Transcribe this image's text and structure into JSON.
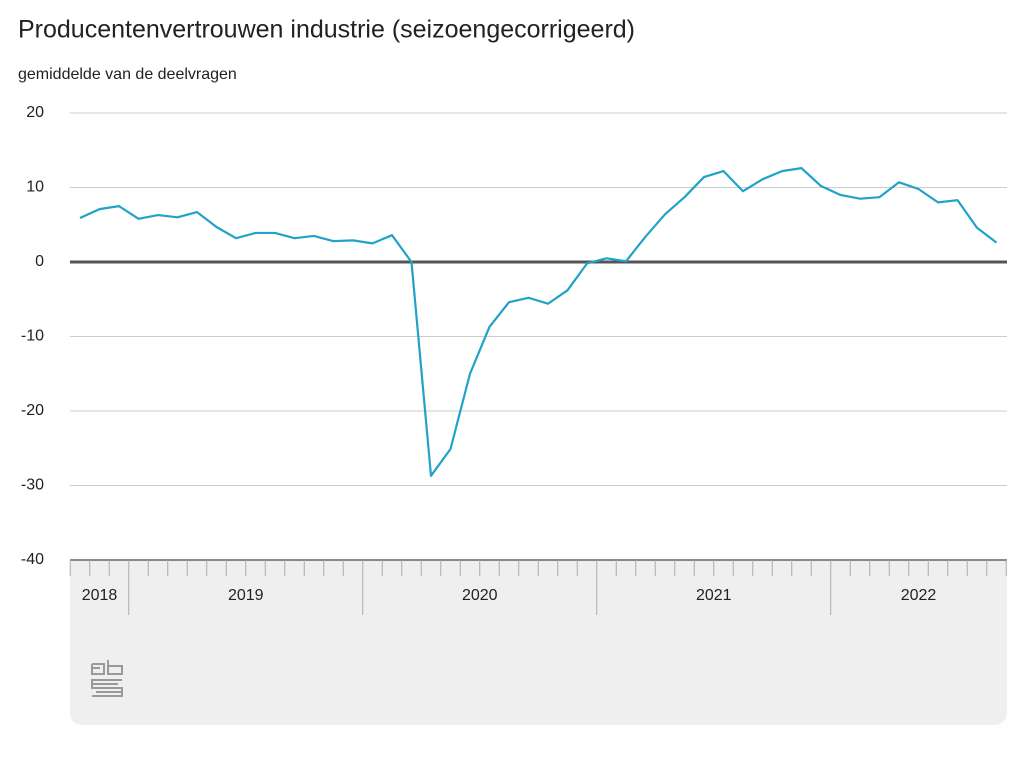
{
  "chart_data": {
    "type": "line",
    "title": "Producentenvertrouwen industrie (seizoengecorrigeerd)",
    "subtitle": "gemiddelde van de deelvragen",
    "categories": [
      "2018",
      "2018",
      "2018",
      "2019",
      "2019",
      "2019",
      "2019",
      "2019",
      "2019",
      "2019",
      "2019",
      "2019",
      "2019",
      "2019",
      "2019",
      "2020",
      "2020",
      "2020",
      "2020",
      "2020",
      "2020",
      "2020",
      "2020",
      "2020",
      "2020",
      "2020",
      "2020",
      "2021",
      "2021",
      "2021",
      "2021",
      "2021",
      "2021",
      "2021",
      "2021",
      "2021",
      "2021",
      "2021",
      "2021",
      "2022",
      "2022",
      "2022",
      "2022",
      "2022",
      "2022",
      "2022",
      "2022",
      "2022"
    ],
    "series": [
      {
        "name": "Producentenvertrouwen",
        "color": "#1fa3c6",
        "values": [
          5.9,
          7.1,
          7.5,
          5.8,
          6.3,
          6.0,
          6.7,
          4.7,
          3.2,
          3.9,
          3.9,
          3.2,
          3.5,
          2.8,
          2.9,
          2.5,
          3.6,
          0.0,
          -28.7,
          -25.1,
          -15.0,
          -8.7,
          -5.4,
          -4.8,
          -5.6,
          -3.8,
          -0.2,
          0.5,
          0.1,
          3.4,
          6.4,
          8.7,
          11.4,
          12.2,
          9.5,
          11.1,
          12.2,
          12.6,
          10.2,
          9.0,
          8.5,
          8.7,
          10.7,
          9.8,
          8.0,
          8.3,
          4.6,
          2.6
        ]
      }
    ],
    "ylim": [
      -40,
      20
    ],
    "yticks": [
      -40,
      -30,
      -20,
      -10,
      0,
      10,
      20
    ],
    "grid": true
  }
}
